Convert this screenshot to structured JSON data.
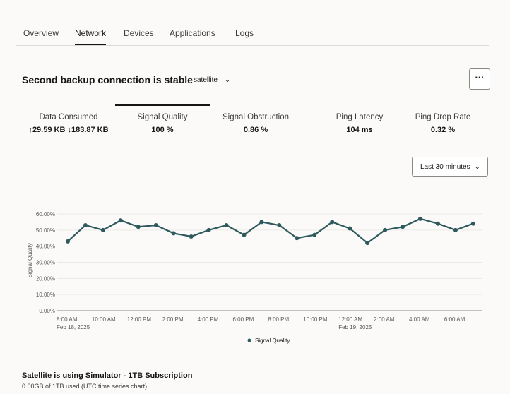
{
  "tabs": [
    {
      "label": "Overview"
    },
    {
      "label": "Network"
    },
    {
      "label": "Devices"
    },
    {
      "label": "Applications"
    },
    {
      "label": "Logs"
    }
  ],
  "active_tab": "Network",
  "header": {
    "title": "Second backup connection is stable",
    "connection_select": "satellite",
    "more_icon": "ellipsis-icon"
  },
  "metrics": [
    {
      "label": "Data Consumed",
      "value": "↑29.59 KB ↓183.87 KB"
    },
    {
      "label": "Signal Quality",
      "value": "100 %"
    },
    {
      "label": "Signal Obstruction",
      "value": "0.86 %"
    },
    {
      "label": "Ping Latency",
      "value": "104 ms"
    },
    {
      "label": "Ping Drop Rate",
      "value": "0.32 %"
    }
  ],
  "selected_metric": "Signal Quality",
  "time_range": "Last 30 minutes",
  "chart_data": {
    "type": "line",
    "ylabel": "Signal Quality",
    "ylim": [
      0,
      60
    ],
    "yticks": [
      "0.00%",
      "10.00%",
      "20.00%",
      "30.00%",
      "40.00%",
      "50.00%",
      "60.00%"
    ],
    "xticks": [
      {
        "label": "8:00 AM",
        "sub": "Feb 18, 2025"
      },
      {
        "label": "10:00 AM"
      },
      {
        "label": "12:00 PM"
      },
      {
        "label": "2:00 PM"
      },
      {
        "label": "4:00 PM"
      },
      {
        "label": "6:00 PM"
      },
      {
        "label": "8:00 PM"
      },
      {
        "label": "10:00 PM"
      },
      {
        "label": "12:00 AM",
        "sub": "Feb 19, 2025"
      },
      {
        "label": "2:00 AM"
      },
      {
        "label": "4:00 AM"
      },
      {
        "label": "6:00 AM"
      }
    ],
    "x": [
      "Feb 18 8:00 AM",
      "9:00 AM",
      "10:00 AM",
      "11:00 AM",
      "12:00 PM",
      "1:00 PM",
      "2:00 PM",
      "3:00 PM",
      "4:00 PM",
      "5:00 PM",
      "6:00 PM",
      "7:00 PM",
      "8:00 PM",
      "9:00 PM",
      "10:00 PM",
      "11:00 PM",
      "Feb 19 12:00 AM",
      "1:00 AM",
      "2:00 AM",
      "3:00 AM",
      "4:00 AM",
      "5:00 AM",
      "6:00 AM",
      "7:00 AM"
    ],
    "series": [
      {
        "name": "Signal Quality",
        "color": "#2f5a5d",
        "values": [
          43,
          53,
          50,
          56,
          52,
          53,
          48,
          46,
          50,
          53,
          47,
          55,
          53,
          45,
          47,
          55,
          51,
          42,
          50,
          52,
          57,
          54,
          50,
          54
        ]
      }
    ],
    "legend": "bottom",
    "grid": true
  },
  "footer": {
    "title": "Satellite is using Simulator - 1TB Subscription",
    "subtitle": "0.00GB of 1TB used (UTC time series chart)"
  }
}
